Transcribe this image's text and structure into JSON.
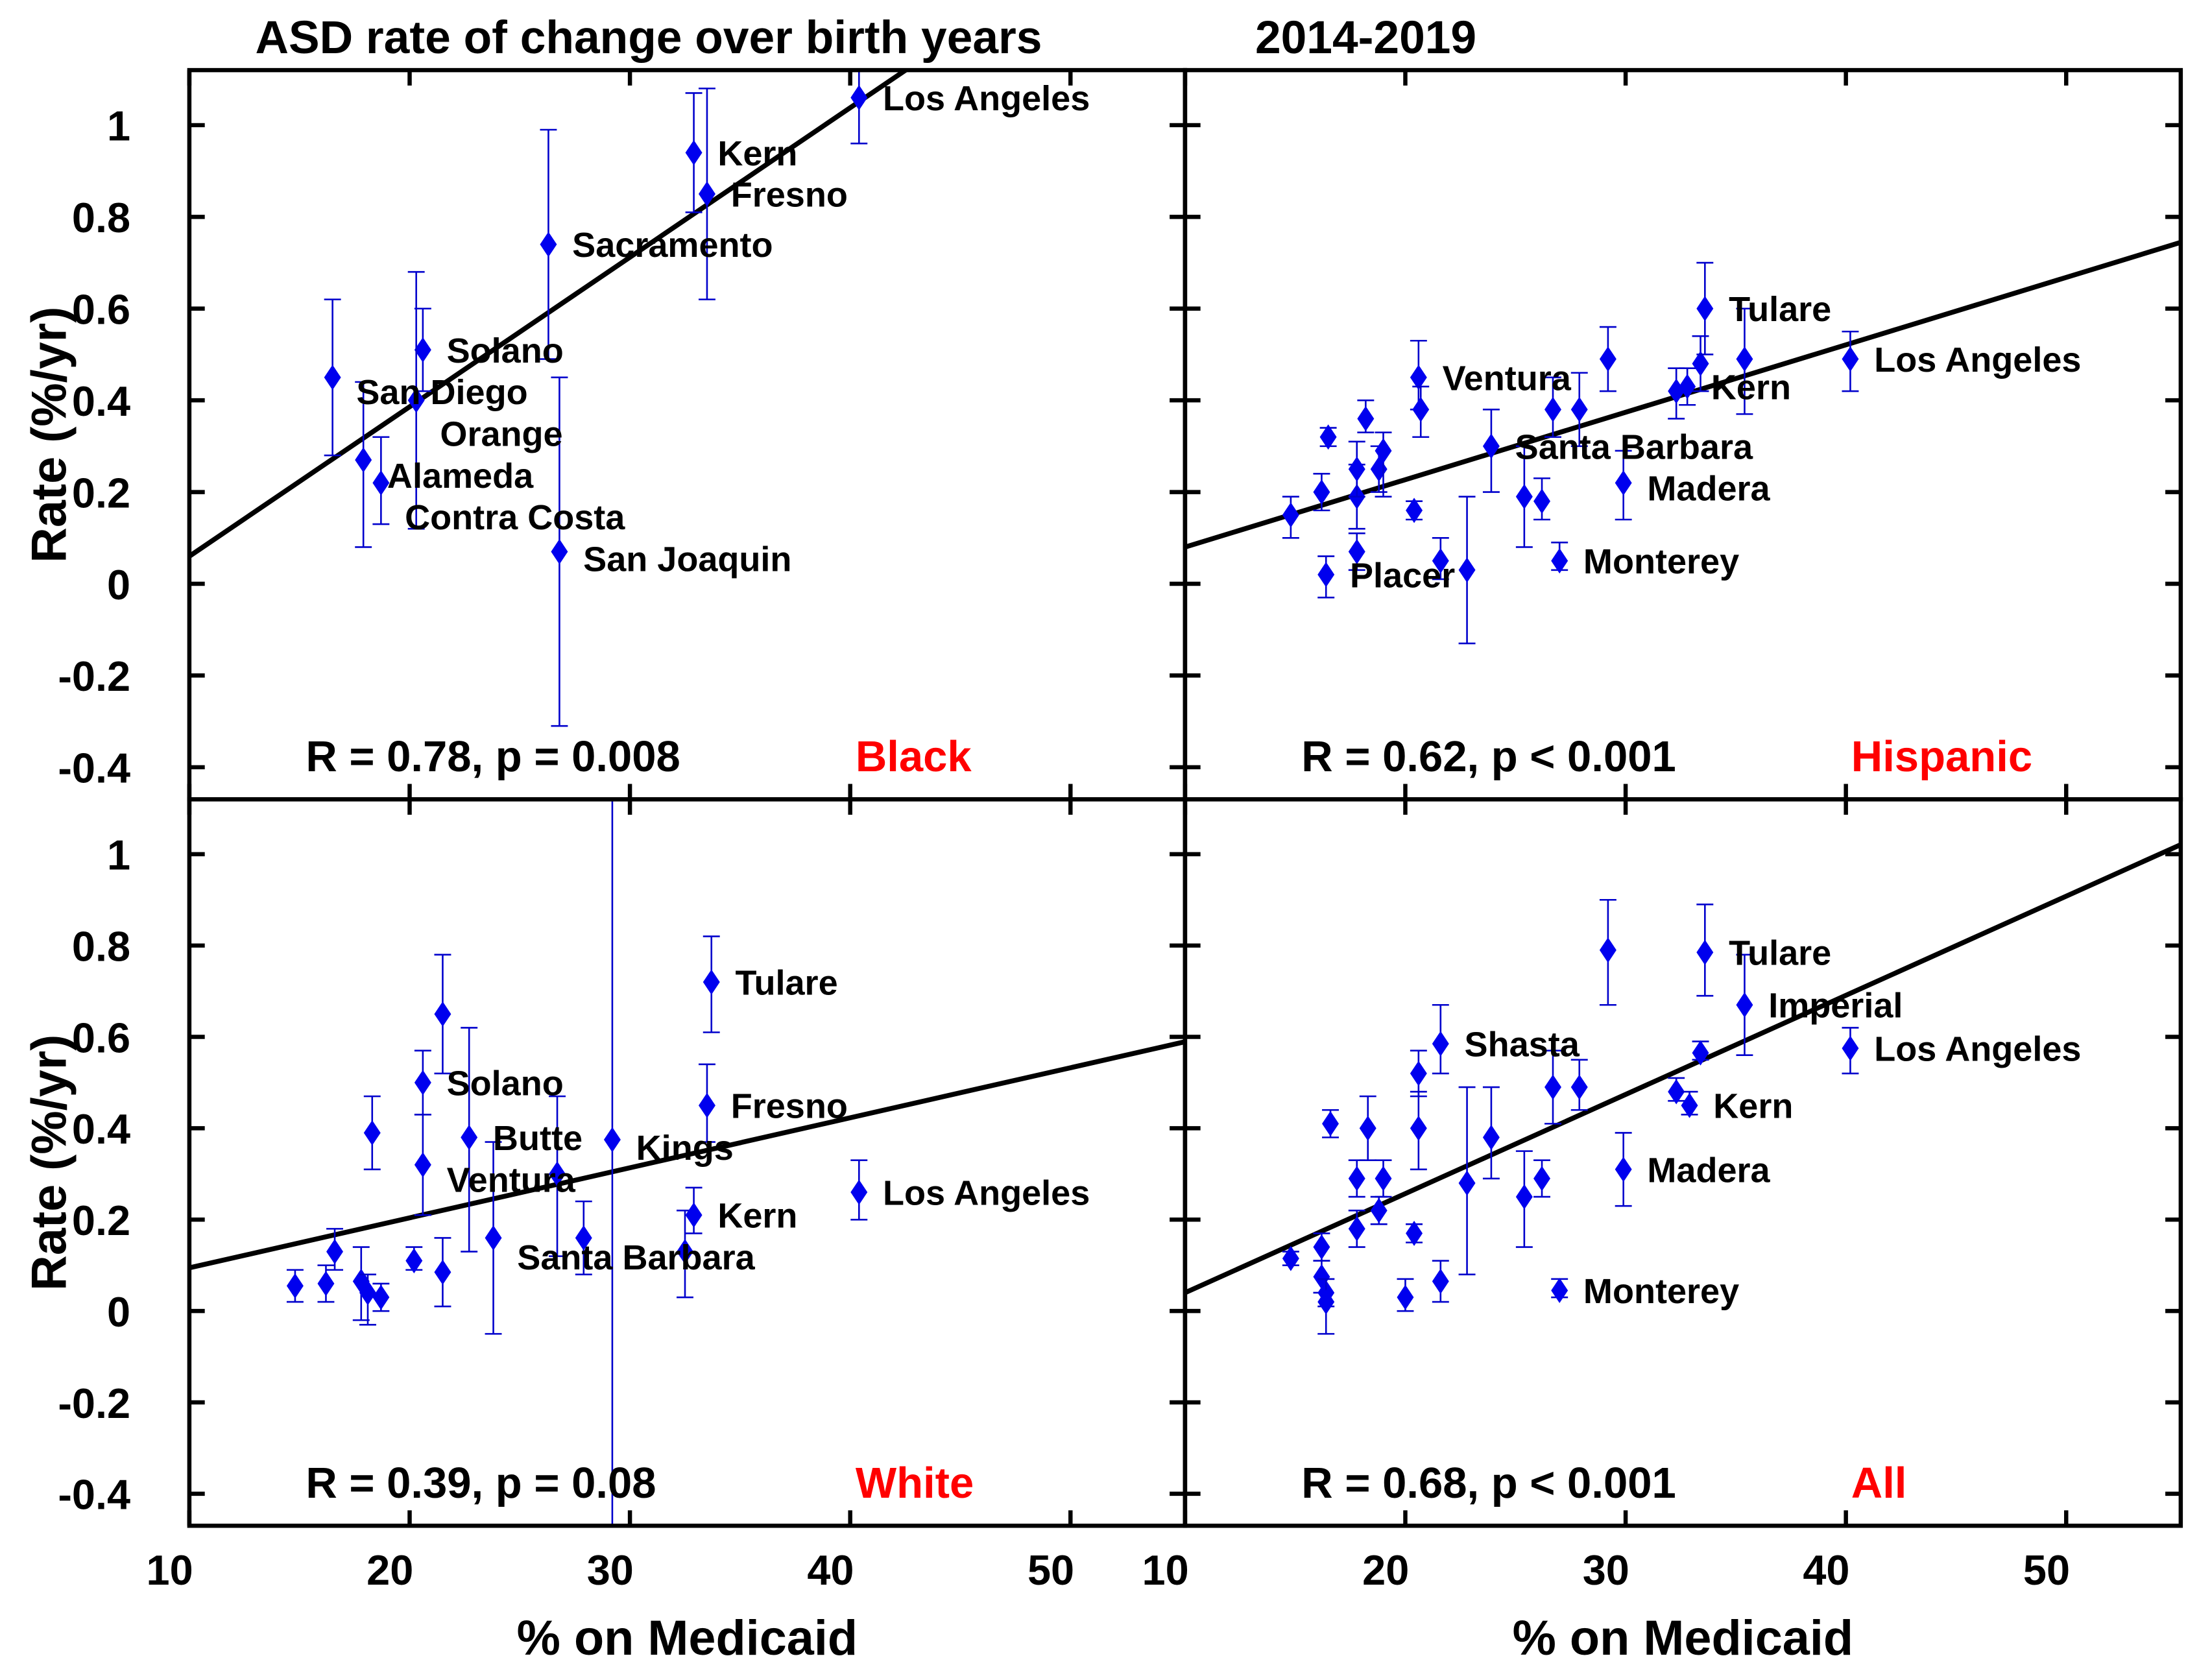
{
  "title_left": "ASD rate of change over birth years",
  "title_right": "2014-2019",
  "ylabel": "Rate (%/yr)",
  "xlabel": "% on Medicaid",
  "colors": {
    "marker": "#0000ee",
    "errorbar": "#0000cc",
    "fit": "#000000",
    "group_label": "#ff0000"
  },
  "chart_data": [
    {
      "type": "scatter",
      "group": "Black",
      "stat": "R = 0.78, p = 0.008",
      "xlim": [
        10,
        55.2
      ],
      "ylim": [
        -0.47,
        1.12
      ],
      "xticks": [
        10,
        20,
        30,
        40,
        50
      ],
      "yticks": [
        -0.4,
        -0.2,
        0,
        0.2,
        0.4,
        0.6,
        0.8,
        1
      ],
      "fit": {
        "slope": 0.0326,
        "intercept": -0.266
      },
      "points": [
        {
          "label": "Los Angeles",
          "x": 40.4,
          "y": 1.06,
          "lo": 0.96,
          "hi": 1.12
        },
        {
          "label": "Kern",
          "x": 32.9,
          "y": 0.94,
          "lo": 0.81,
          "hi": 1.07
        },
        {
          "label": "Fresno",
          "x": 33.5,
          "y": 0.85,
          "lo": 0.62,
          "hi": 1.08
        },
        {
          "label": "Sacramento",
          "x": 26.3,
          "y": 0.74,
          "lo": 0.49,
          "hi": 0.99
        },
        {
          "label": "Solano",
          "x": 20.6,
          "y": 0.51,
          "lo": 0.42,
          "hi": 0.6
        },
        {
          "label": "San Diego",
          "x": 16.5,
          "y": 0.45,
          "lo": 0.28,
          "hi": 0.62
        },
        {
          "label": "Orange",
          "x": 20.3,
          "y": 0.4,
          "lo": 0.12,
          "hi": 0.68
        },
        {
          "label": "Alameda",
          "x": 17.9,
          "y": 0.27,
          "lo": 0.08,
          "hi": 0.44
        },
        {
          "label": "Contra Costa",
          "x": 18.7,
          "y": 0.22,
          "lo": 0.13,
          "hi": 0.32
        },
        {
          "label": "San Joaquin",
          "x": 26.8,
          "y": 0.07,
          "lo": -0.31,
          "hi": 0.45
        }
      ]
    },
    {
      "type": "scatter",
      "group": "Hispanic",
      "stat": "R = 0.62, p < 0.001",
      "xlim": [
        10,
        55.2
      ],
      "ylim": [
        -0.47,
        1.12
      ],
      "xticks": [
        10,
        20,
        30,
        40,
        50
      ],
      "yticks": [
        -0.4,
        -0.2,
        0,
        0.2,
        0.4,
        0.6,
        0.8,
        1
      ],
      "fit": {
        "slope": 0.0147,
        "intercept": -0.067
      },
      "points": [
        {
          "label": "",
          "x": 14.8,
          "y": 0.15,
          "lo": 0.1,
          "hi": 0.19
        },
        {
          "label": "",
          "x": 16.2,
          "y": 0.2,
          "lo": 0.16,
          "hi": 0.24
        },
        {
          "label": "",
          "x": 16.5,
          "y": 0.32,
          "lo": 0.3,
          "hi": 0.34
        },
        {
          "label": "Placer",
          "x": 16.4,
          "y": 0.02,
          "lo": -0.03,
          "hi": 0.06
        },
        {
          "label": "",
          "x": 17.8,
          "y": 0.07,
          "lo": 0.03,
          "hi": 0.11
        },
        {
          "label": "",
          "x": 17.8,
          "y": 0.19,
          "lo": 0.12,
          "hi": 0.26
        },
        {
          "label": "",
          "x": 17.8,
          "y": 0.25,
          "lo": 0.19,
          "hi": 0.31
        },
        {
          "label": "",
          "x": 18.2,
          "y": 0.36,
          "lo": 0.33,
          "hi": 0.4
        },
        {
          "label": "",
          "x": 18.8,
          "y": 0.25,
          "lo": 0.2,
          "hi": 0.3
        },
        {
          "label": "",
          "x": 19.0,
          "y": 0.29,
          "lo": 0.19,
          "hi": 0.33
        },
        {
          "label": "",
          "x": 20.4,
          "y": 0.16,
          "lo": 0.14,
          "hi": 0.18
        },
        {
          "label": "Ventura",
          "x": 20.6,
          "y": 0.45,
          "lo": 0.38,
          "hi": 0.53
        },
        {
          "label": "",
          "x": 20.7,
          "y": 0.38,
          "lo": 0.32,
          "hi": 0.43
        },
        {
          "label": "",
          "x": 21.6,
          "y": 0.05,
          "lo": 0.01,
          "hi": 0.1
        },
        {
          "label": "",
          "x": 22.8,
          "y": 0.03,
          "lo": -0.13,
          "hi": 0.19
        },
        {
          "label": "Santa Barbara",
          "x": 23.9,
          "y": 0.3,
          "lo": 0.2,
          "hi": 0.38
        },
        {
          "label": "",
          "x": 25.4,
          "y": 0.19,
          "lo": 0.08,
          "hi": 0.3
        },
        {
          "label": "",
          "x": 26.2,
          "y": 0.18,
          "lo": 0.14,
          "hi": 0.23
        },
        {
          "label": "",
          "x": 26.7,
          "y": 0.38,
          "lo": 0.32,
          "hi": 0.45
        },
        {
          "label": "Monterey",
          "x": 27.0,
          "y": 0.05,
          "lo": 0.03,
          "hi": 0.09
        },
        {
          "label": "",
          "x": 27.9,
          "y": 0.38,
          "lo": 0.3,
          "hi": 0.46
        },
        {
          "label": "",
          "x": 29.2,
          "y": 0.49,
          "lo": 0.42,
          "hi": 0.56
        },
        {
          "label": "Madera",
          "x": 29.9,
          "y": 0.22,
          "lo": 0.14,
          "hi": 0.29
        },
        {
          "label": "",
          "x": 32.3,
          "y": 0.42,
          "lo": 0.36,
          "hi": 0.47
        },
        {
          "label": "Kern",
          "x": 32.8,
          "y": 0.43,
          "lo": 0.39,
          "hi": 0.47
        },
        {
          "label": "",
          "x": 33.4,
          "y": 0.48,
          "lo": 0.42,
          "hi": 0.54
        },
        {
          "label": "Tulare",
          "x": 33.6,
          "y": 0.6,
          "lo": 0.5,
          "hi": 0.7
        },
        {
          "label": "",
          "x": 35.4,
          "y": 0.49,
          "lo": 0.37,
          "hi": 0.6
        },
        {
          "label": "Los Angeles",
          "x": 40.2,
          "y": 0.49,
          "lo": 0.42,
          "hi": 0.55
        }
      ]
    },
    {
      "type": "scatter",
      "group": "White",
      "stat": "R = 0.39, p = 0.08",
      "xlim": [
        10,
        55.2
      ],
      "ylim": [
        -0.47,
        1.12
      ],
      "xticks": [
        10,
        20,
        30,
        40,
        50
      ],
      "yticks": [
        -0.4,
        -0.2,
        0,
        0.2,
        0.4,
        0.6,
        0.8,
        1
      ],
      "fit": {
        "slope": 0.01095,
        "intercept": -0.015
      },
      "points": [
        {
          "label": "",
          "x": 14.8,
          "y": 0.055,
          "lo": 0.02,
          "hi": 0.09
        },
        {
          "label": "",
          "x": 16.2,
          "y": 0.06,
          "lo": 0.02,
          "hi": 0.1
        },
        {
          "label": "",
          "x": 16.6,
          "y": 0.13,
          "lo": 0.09,
          "hi": 0.18
        },
        {
          "label": "",
          "x": 17.8,
          "y": 0.065,
          "lo": -0.02,
          "hi": 0.14
        },
        {
          "label": "",
          "x": 18.1,
          "y": 0.04,
          "lo": -0.03,
          "hi": 0.08
        },
        {
          "label": "",
          "x": 18.7,
          "y": 0.03,
          "lo": 0.0,
          "hi": 0.06
        },
        {
          "label": "",
          "x": 18.3,
          "y": 0.39,
          "lo": 0.31,
          "hi": 0.47
        },
        {
          "label": "",
          "x": 20.2,
          "y": 0.11,
          "lo": 0.09,
          "hi": 0.14
        },
        {
          "label": "Solano",
          "x": 20.6,
          "y": 0.5,
          "lo": 0.43,
          "hi": 0.57
        },
        {
          "label": "Ventura",
          "x": 20.6,
          "y": 0.32,
          "lo": 0.21,
          "hi": 0.43
        },
        {
          "label": "",
          "x": 21.5,
          "y": 0.085,
          "lo": 0.01,
          "hi": 0.16
        },
        {
          "label": "",
          "x": 21.5,
          "y": 0.65,
          "lo": 0.52,
          "hi": 0.78
        },
        {
          "label": "Butte",
          "x": 22.7,
          "y": 0.38,
          "lo": 0.13,
          "hi": 0.62
        },
        {
          "label": "Santa Barbara",
          "x": 23.8,
          "y": 0.16,
          "lo": -0.05,
          "hi": 0.37
        },
        {
          "label": "",
          "x": 26.7,
          "y": 0.3,
          "lo": 0.12,
          "hi": 0.47
        },
        {
          "label": "",
          "x": 27.9,
          "y": 0.16,
          "lo": 0.08,
          "hi": 0.24
        },
        {
          "label": "Kings",
          "x": 29.2,
          "y": 0.375,
          "lo": -0.6,
          "hi": 1.3
        },
        {
          "label": "",
          "x": 32.5,
          "y": 0.13,
          "lo": 0.03,
          "hi": 0.22
        },
        {
          "label": "Kern",
          "x": 32.9,
          "y": 0.21,
          "lo": 0.17,
          "hi": 0.27
        },
        {
          "label": "Fresno",
          "x": 33.5,
          "y": 0.45,
          "lo": 0.37,
          "hi": 0.54
        },
        {
          "label": "Tulare",
          "x": 33.7,
          "y": 0.72,
          "lo": 0.61,
          "hi": 0.82
        },
        {
          "label": "Los Angeles",
          "x": 40.4,
          "y": 0.26,
          "lo": 0.2,
          "hi": 0.33
        }
      ]
    },
    {
      "type": "scatter",
      "group": "All",
      "stat": "R = 0.68, p < 0.001",
      "xlim": [
        10,
        55.2
      ],
      "ylim": [
        -0.47,
        1.12
      ],
      "xticks": [
        10,
        20,
        30,
        40,
        50
      ],
      "yticks": [
        -0.4,
        -0.2,
        0,
        0.2,
        0.4,
        0.6,
        0.8,
        1
      ],
      "fit": {
        "slope": 0.0217,
        "intercept": -0.177
      },
      "points": [
        {
          "label": "",
          "x": 14.8,
          "y": 0.115,
          "lo": 0.1,
          "hi": 0.13
        },
        {
          "label": "",
          "x": 16.2,
          "y": 0.14,
          "lo": 0.11,
          "hi": 0.17
        },
        {
          "label": "",
          "x": 16.2,
          "y": 0.075,
          "lo": 0.04,
          "hi": 0.11
        },
        {
          "label": "",
          "x": 16.4,
          "y": 0.04,
          "lo": 0.01,
          "hi": 0.07
        },
        {
          "label": "",
          "x": 16.4,
          "y": 0.02,
          "lo": -0.05,
          "hi": 0.07
        },
        {
          "label": "",
          "x": 16.6,
          "y": 0.41,
          "lo": 0.38,
          "hi": 0.44
        },
        {
          "label": "",
          "x": 17.8,
          "y": 0.18,
          "lo": 0.14,
          "hi": 0.22
        },
        {
          "label": "",
          "x": 17.8,
          "y": 0.29,
          "lo": 0.25,
          "hi": 0.33
        },
        {
          "label": "",
          "x": 18.3,
          "y": 0.4,
          "lo": 0.33,
          "hi": 0.47
        },
        {
          "label": "",
          "x": 18.8,
          "y": 0.22,
          "lo": 0.19,
          "hi": 0.25
        },
        {
          "label": "",
          "x": 19.0,
          "y": 0.29,
          "lo": 0.25,
          "hi": 0.33
        },
        {
          "label": "",
          "x": 20.4,
          "y": 0.17,
          "lo": 0.15,
          "hi": 0.19
        },
        {
          "label": "",
          "x": 20.0,
          "y": 0.03,
          "lo": 0.0,
          "hi": 0.07
        },
        {
          "label": "",
          "x": 20.6,
          "y": 0.52,
          "lo": 0.47,
          "hi": 0.57
        },
        {
          "label": "",
          "x": 20.6,
          "y": 0.4,
          "lo": 0.31,
          "hi": 0.48
        },
        {
          "label": "",
          "x": 21.6,
          "y": 0.065,
          "lo": 0.02,
          "hi": 0.11
        },
        {
          "label": "Shasta",
          "x": 21.6,
          "y": 0.585,
          "lo": 0.52,
          "hi": 0.67
        },
        {
          "label": "",
          "x": 22.8,
          "y": 0.28,
          "lo": 0.08,
          "hi": 0.49
        },
        {
          "label": "",
          "x": 23.9,
          "y": 0.38,
          "lo": 0.29,
          "hi": 0.49
        },
        {
          "label": "",
          "x": 25.4,
          "y": 0.25,
          "lo": 0.14,
          "hi": 0.35
        },
        {
          "label": "",
          "x": 26.2,
          "y": 0.29,
          "lo": 0.25,
          "hi": 0.33
        },
        {
          "label": "",
          "x": 26.7,
          "y": 0.49,
          "lo": 0.41,
          "hi": 0.57
        },
        {
          "label": "Monterey",
          "x": 27.0,
          "y": 0.045,
          "lo": 0.03,
          "hi": 0.07
        },
        {
          "label": "",
          "x": 27.9,
          "y": 0.49,
          "lo": 0.44,
          "hi": 0.55
        },
        {
          "label": "",
          "x": 29.2,
          "y": 0.79,
          "lo": 0.67,
          "hi": 0.9
        },
        {
          "label": "Madera",
          "x": 29.9,
          "y": 0.31,
          "lo": 0.23,
          "hi": 0.39
        },
        {
          "label": "",
          "x": 32.3,
          "y": 0.48,
          "lo": 0.46,
          "hi": 0.51
        },
        {
          "label": "Kern",
          "x": 32.9,
          "y": 0.45,
          "lo": 0.43,
          "hi": 0.48
        },
        {
          "label": "",
          "x": 33.4,
          "y": 0.565,
          "lo": 0.55,
          "hi": 0.59
        },
        {
          "label": "Tulare",
          "x": 33.6,
          "y": 0.785,
          "lo": 0.69,
          "hi": 0.89
        },
        {
          "label": "Imperial",
          "x": 35.4,
          "y": 0.67,
          "lo": 0.56,
          "hi": 0.78
        },
        {
          "label": "Los Angeles",
          "x": 40.2,
          "y": 0.575,
          "lo": 0.52,
          "hi": 0.62
        }
      ]
    }
  ]
}
